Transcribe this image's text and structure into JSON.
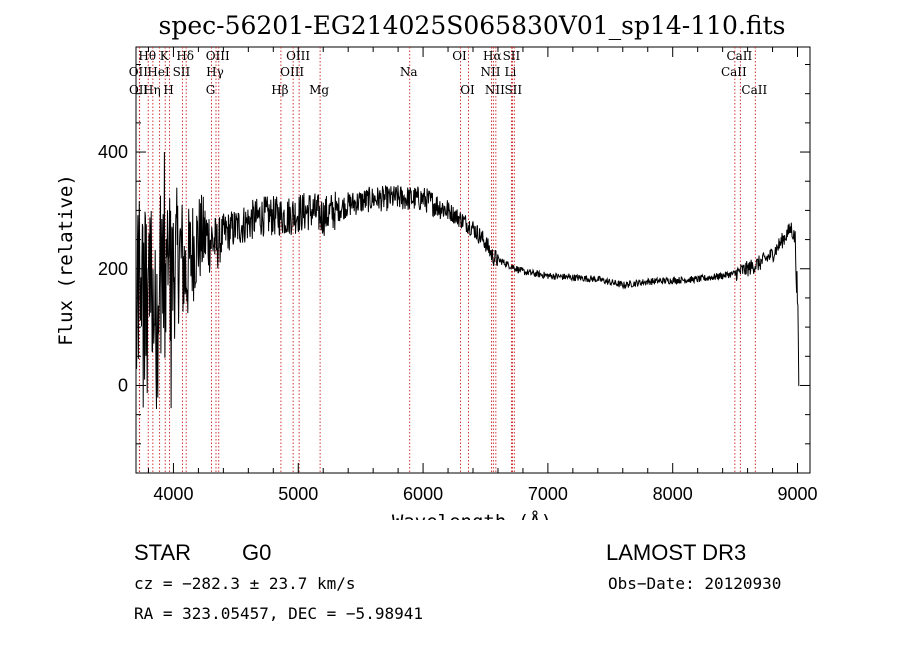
{
  "chart_data": {
    "type": "line",
    "title": "spec-56201-EG214025S065830V01_sp14-110.fits",
    "xlabel": "Wavelength (Å)",
    "ylabel": "Flux (relative)",
    "xlim": [
      3700,
      9100
    ],
    "ylim": [
      -150,
      580
    ],
    "xticks": [
      4000,
      5000,
      6000,
      7000,
      8000,
      9000
    ],
    "yticks": [
      0,
      200,
      400
    ],
    "spectrum_control_points": [
      [
        3700,
        100
      ],
      [
        3750,
        180
      ],
      [
        3800,
        200
      ],
      [
        3850,
        130
      ],
      [
        3900,
        180
      ],
      [
        3950,
        170
      ],
      [
        4000,
        200
      ],
      [
        4050,
        230
      ],
      [
        4100,
        190
      ],
      [
        4150,
        230
      ],
      [
        4200,
        250
      ],
      [
        4250,
        255
      ],
      [
        4300,
        250
      ],
      [
        4350,
        240
      ],
      [
        4400,
        260
      ],
      [
        4500,
        270
      ],
      [
        4600,
        280
      ],
      [
        4700,
        290
      ],
      [
        4800,
        290
      ],
      [
        4900,
        290
      ],
      [
        5000,
        295
      ],
      [
        5100,
        300
      ],
      [
        5200,
        290
      ],
      [
        5300,
        300
      ],
      [
        5400,
        310
      ],
      [
        5500,
        315
      ],
      [
        5600,
        320
      ],
      [
        5700,
        320
      ],
      [
        5800,
        322
      ],
      [
        5900,
        320
      ],
      [
        6000,
        320
      ],
      [
        6100,
        310
      ],
      [
        6200,
        300
      ],
      [
        6300,
        285
      ],
      [
        6400,
        270
      ],
      [
        6500,
        245
      ],
      [
        6560,
        220
      ],
      [
        6700,
        205
      ],
      [
        6800,
        195
      ],
      [
        7000,
        188
      ],
      [
        7200,
        185
      ],
      [
        7400,
        182
      ],
      [
        7600,
        172
      ],
      [
        7700,
        175
      ],
      [
        7800,
        178
      ],
      [
        8000,
        180
      ],
      [
        8200,
        182
      ],
      [
        8400,
        188
      ],
      [
        8500,
        192
      ],
      [
        8600,
        200
      ],
      [
        8700,
        210
      ],
      [
        8800,
        225
      ],
      [
        8900,
        255
      ],
      [
        8950,
        270
      ],
      [
        8980,
        250
      ],
      [
        9000,
        150
      ],
      [
        9010,
        10
      ]
    ],
    "spectral_lines": [
      {
        "name": "OII",
        "wl": 3727,
        "row": 1
      },
      {
        "name": "OII",
        "wl": 3729,
        "row": 2
      },
      {
        "name": "Hθ",
        "wl": 3798,
        "row": 0
      },
      {
        "name": "Hη",
        "wl": 3835,
        "row": 2
      },
      {
        "name": "HeI",
        "wl": 3889,
        "row": 1
      },
      {
        "name": "K",
        "wl": 3934,
        "row": 0
      },
      {
        "name": "H",
        "wl": 3969,
        "row": 2
      },
      {
        "name": "SII",
        "wl": 4072,
        "row": 1
      },
      {
        "name": "Hδ",
        "wl": 4102,
        "row": 0
      },
      {
        "name": "G",
        "wl": 4305,
        "row": 2
      },
      {
        "name": "Hγ",
        "wl": 4341,
        "row": 1
      },
      {
        "name": "OIII",
        "wl": 4363,
        "row": 0
      },
      {
        "name": "Hβ",
        "wl": 4861,
        "row": 2
      },
      {
        "name": "OIII",
        "wl": 4959,
        "row": 1
      },
      {
        "name": "OIII",
        "wl": 5007,
        "row": 0
      },
      {
        "name": "Mg",
        "wl": 5175,
        "row": 2
      },
      {
        "name": "Na",
        "wl": 5893,
        "row": 1
      },
      {
        "name": "OI",
        "wl": 6300,
        "row": 0
      },
      {
        "name": "OI",
        "wl": 6364,
        "row": 2
      },
      {
        "name": "NII",
        "wl": 6548,
        "row": 1
      },
      {
        "name": "Hα",
        "wl": 6563,
        "row": 0
      },
      {
        "name": "NII",
        "wl": 6583,
        "row": 2
      },
      {
        "name": "Li",
        "wl": 6708,
        "row": 1
      },
      {
        "name": "SII",
        "wl": 6716,
        "row": 0
      },
      {
        "name": "SII",
        "wl": 6731,
        "row": 2
      },
      {
        "name": "CaII",
        "wl": 8498,
        "row": 1
      },
      {
        "name": "CaII",
        "wl": 8542,
        "row": 0
      },
      {
        "name": "CaII",
        "wl": 8662,
        "row": 2
      }
    ]
  },
  "info": {
    "object_class": "STAR",
    "subclass": "G0",
    "survey": "LAMOST DR3",
    "cz": "cz = −282.3 ± 23.7 km/s",
    "obs_date": "Obs−Date: 20120930",
    "coords": "RA = 323.05457, DEC =  −5.98941"
  }
}
